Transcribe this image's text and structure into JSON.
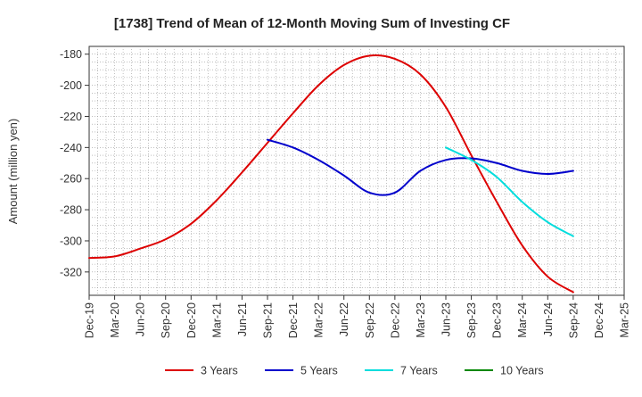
{
  "chart_data": {
    "type": "line",
    "title": "[1738]  Trend of Mean of 12-Month Moving Sum of Investing CF",
    "xlabel": "",
    "ylabel": "Amount (million yen)",
    "ylim": [
      -335,
      -175
    ],
    "yticks": [
      -180,
      -200,
      -220,
      -240,
      -260,
      -280,
      -300,
      -320
    ],
    "x_range": [
      "Dec-19",
      "Mar-25"
    ],
    "categories": [
      "Dec-19",
      "Mar-20",
      "Jun-20",
      "Sep-20",
      "Dec-20",
      "Mar-21",
      "Jun-21",
      "Sep-21",
      "Dec-21",
      "Mar-22",
      "Jun-22",
      "Sep-22",
      "Dec-22",
      "Mar-23",
      "Jun-23",
      "Sep-23",
      "Dec-23",
      "Mar-24",
      "Jun-24",
      "Sep-24",
      "Dec-24",
      "Mar-25"
    ],
    "grid": true,
    "legend_position": "bottom",
    "series": [
      {
        "name": "3 Years",
        "color": "#dd0000",
        "points": [
          [
            "Dec-19",
            -311
          ],
          [
            "Mar-20",
            -310
          ],
          [
            "Jun-20",
            -305
          ],
          [
            "Sep-20",
            -299
          ],
          [
            "Dec-20",
            -289
          ],
          [
            "Mar-21",
            -274
          ],
          [
            "Jun-21",
            -256
          ],
          [
            "Sep-21",
            -237
          ],
          [
            "Dec-21",
            -218
          ],
          [
            "Mar-22",
            -200
          ],
          [
            "Jun-22",
            -187
          ],
          [
            "Sep-22",
            -181
          ],
          [
            "Dec-22",
            -183
          ],
          [
            "Mar-23",
            -193
          ],
          [
            "Jun-23",
            -214
          ],
          [
            "Sep-23",
            -245
          ],
          [
            "Dec-23",
            -275
          ],
          [
            "Mar-24",
            -303
          ],
          [
            "Jun-24",
            -323
          ],
          [
            "Sep-24",
            -333
          ]
        ]
      },
      {
        "name": "5 Years",
        "color": "#0000cc",
        "points": [
          [
            "Sep-21",
            -235
          ],
          [
            "Dec-21",
            -240
          ],
          [
            "Mar-22",
            -248
          ],
          [
            "Jun-22",
            -258
          ],
          [
            "Sep-22",
            -269
          ],
          [
            "Dec-22",
            -269
          ],
          [
            "Mar-23",
            -255
          ],
          [
            "Jun-23",
            -248
          ],
          [
            "Sep-23",
            -247
          ],
          [
            "Dec-23",
            -250
          ],
          [
            "Mar-24",
            -255
          ],
          [
            "Jun-24",
            -257
          ],
          [
            "Sep-24",
            -255
          ]
        ]
      },
      {
        "name": "7 Years",
        "color": "#00dddd",
        "points": [
          [
            "Jun-23",
            -240
          ],
          [
            "Sep-23",
            -248
          ],
          [
            "Dec-23",
            -259
          ],
          [
            "Mar-24",
            -275
          ],
          [
            "Jun-24",
            -288
          ],
          [
            "Sep-24",
            -297
          ]
        ]
      },
      {
        "name": "10 Years",
        "color": "#008800",
        "points": []
      }
    ]
  }
}
